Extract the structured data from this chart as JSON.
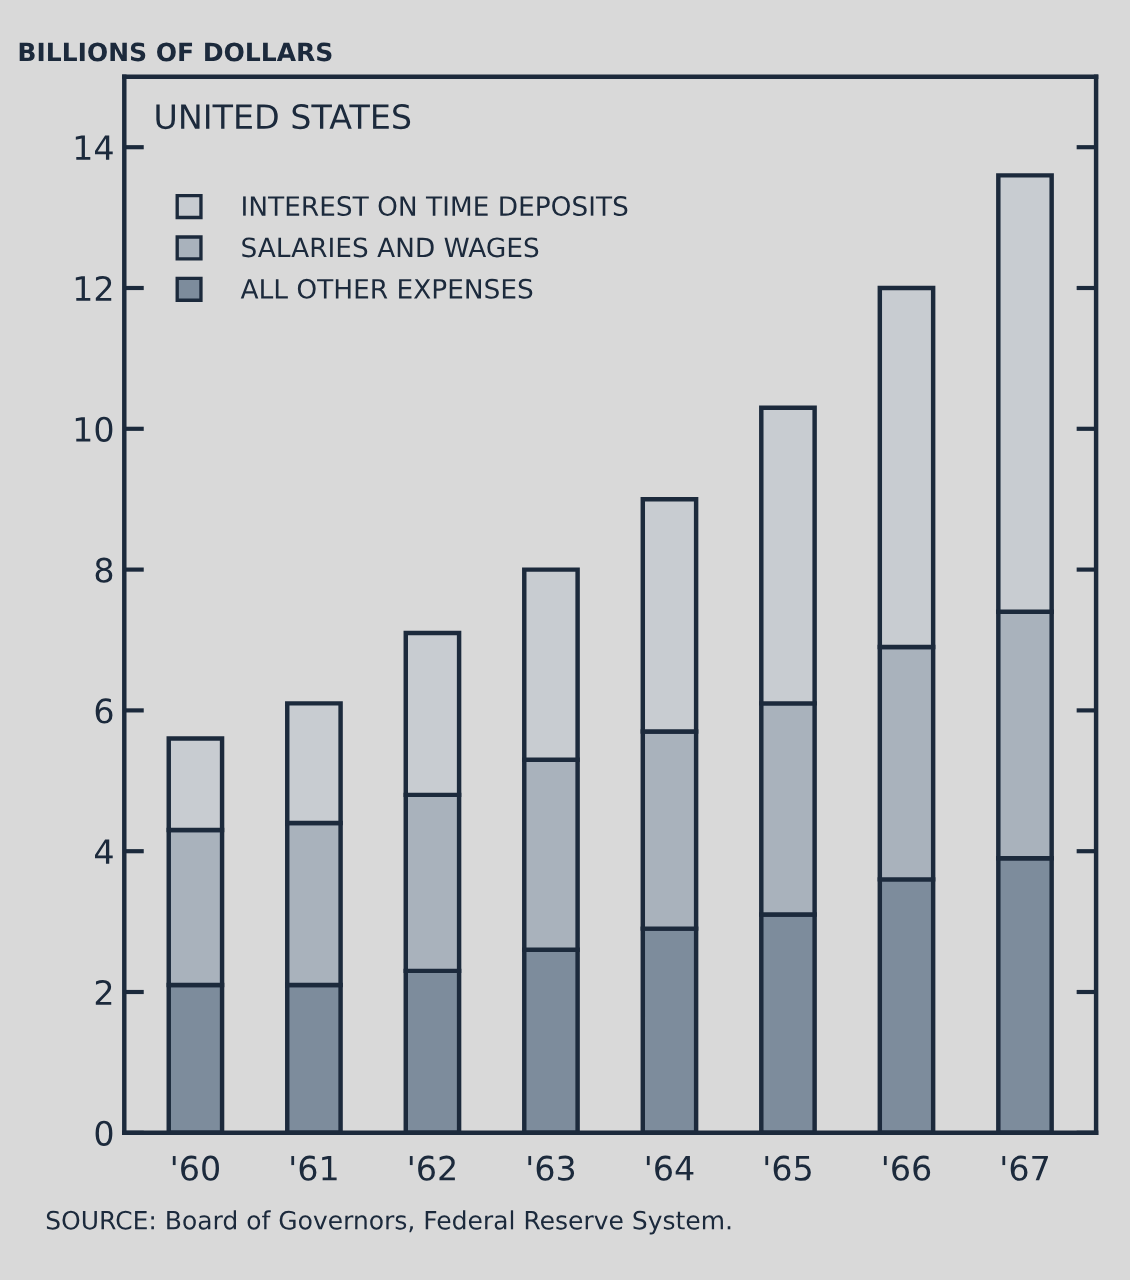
{
  "chart_data": {
    "type": "bar",
    "stacked": true,
    "title": "UNITED STATES",
    "ylabel": "BILLIONS OF DOLLARS",
    "categories": [
      "'60",
      "'61",
      "'62",
      "'63",
      "'64",
      "'65",
      "'66",
      "'67"
    ],
    "series": [
      {
        "name": "ALL OTHER EXPENSES",
        "color": "#7d8c9c",
        "values": [
          2.1,
          2.1,
          2.3,
          2.6,
          2.9,
          3.1,
          3.6,
          3.9
        ]
      },
      {
        "name": "SALARIES AND WAGES",
        "color": "#a9b2bc",
        "values": [
          2.2,
          2.3,
          2.5,
          2.7,
          2.8,
          3.0,
          3.3,
          3.5
        ]
      },
      {
        "name": "INTEREST ON TIME DEPOSITS",
        "color": "#c8ccd1",
        "values": [
          1.3,
          1.7,
          2.3,
          2.7,
          3.3,
          4.2,
          5.1,
          6.2
        ]
      }
    ],
    "ylim": [
      0,
      15
    ],
    "yticks": [
      0,
      2,
      4,
      6,
      8,
      10,
      12,
      14
    ],
    "grid": false,
    "legend": "top left",
    "annotations": [
      "SOURCE: Board of Governors, Federal Reserve System."
    ]
  }
}
